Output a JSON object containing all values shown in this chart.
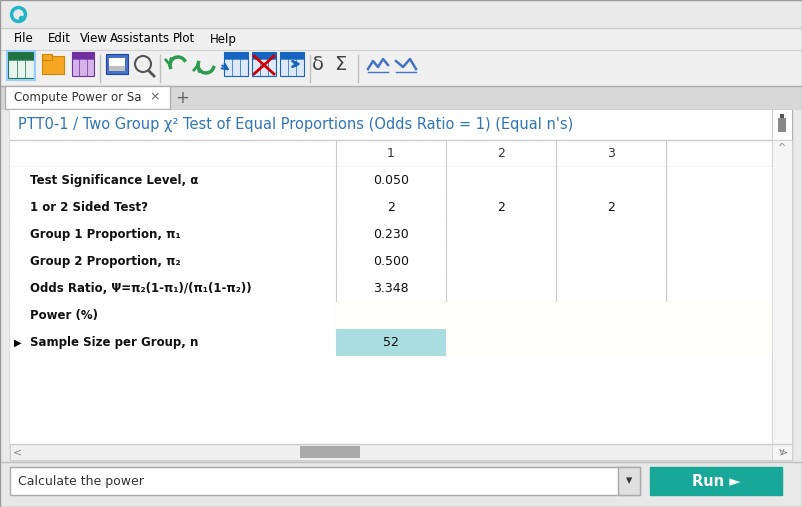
{
  "title": "PTT0-1 / Two Group χ² Test of Equal Proportions (Odds Ratio = 1) (Equal n's)",
  "tab_label": "Compute Power or Sa",
  "menu_items": [
    "File",
    "Edit",
    "View",
    "Assistants",
    "Plot",
    "Help"
  ],
  "menu_x": [
    14,
    48,
    80,
    110,
    173,
    210
  ],
  "rows": [
    {
      "label": "Test Significance Level, α",
      "col1": "0.050",
      "col2": "",
      "col3": "",
      "is_output": false
    },
    {
      "label": "1 or 2 Sided Test?",
      "col1": "2",
      "col2": "2",
      "col3": "2",
      "is_output": false
    },
    {
      "label": "Group 1 Proportion, π₁",
      "col1": "0.230",
      "col2": "",
      "col3": "",
      "is_output": false
    },
    {
      "label": "Group 2 Proportion, π₂",
      "col1": "0.500",
      "col2": "",
      "col3": "",
      "is_output": false
    },
    {
      "label": "Odds Ratio, Ψ=π₂(1-π₁)/(π₁(1-π₂))",
      "col1": "3.348",
      "col2": "",
      "col3": "",
      "is_output": false
    },
    {
      "label": "Power (%)",
      "col1": "",
      "col2": "",
      "col3": "",
      "is_output": false,
      "is_power": true
    },
    {
      "label": "Sample Size per Group, n",
      "col1": "52",
      "col2": "",
      "col3": "",
      "is_output": true
    }
  ],
  "dropdown_text": "Calculate the power",
  "run_button_text": "Run ►",
  "window_bg": "#eaeaea",
  "titlebar_bg": "#f0f0f0",
  "content_bg": "#ffffff",
  "title_color": "#2E75B6",
  "output_cell_bg": "#aadde0",
  "empty_output_bg": "#fffffb",
  "power_cell_bg": "#fffffb",
  "run_button_color": "#17a89a",
  "grid_color": "#cccccc",
  "tab_bg": "#f0f0f0"
}
